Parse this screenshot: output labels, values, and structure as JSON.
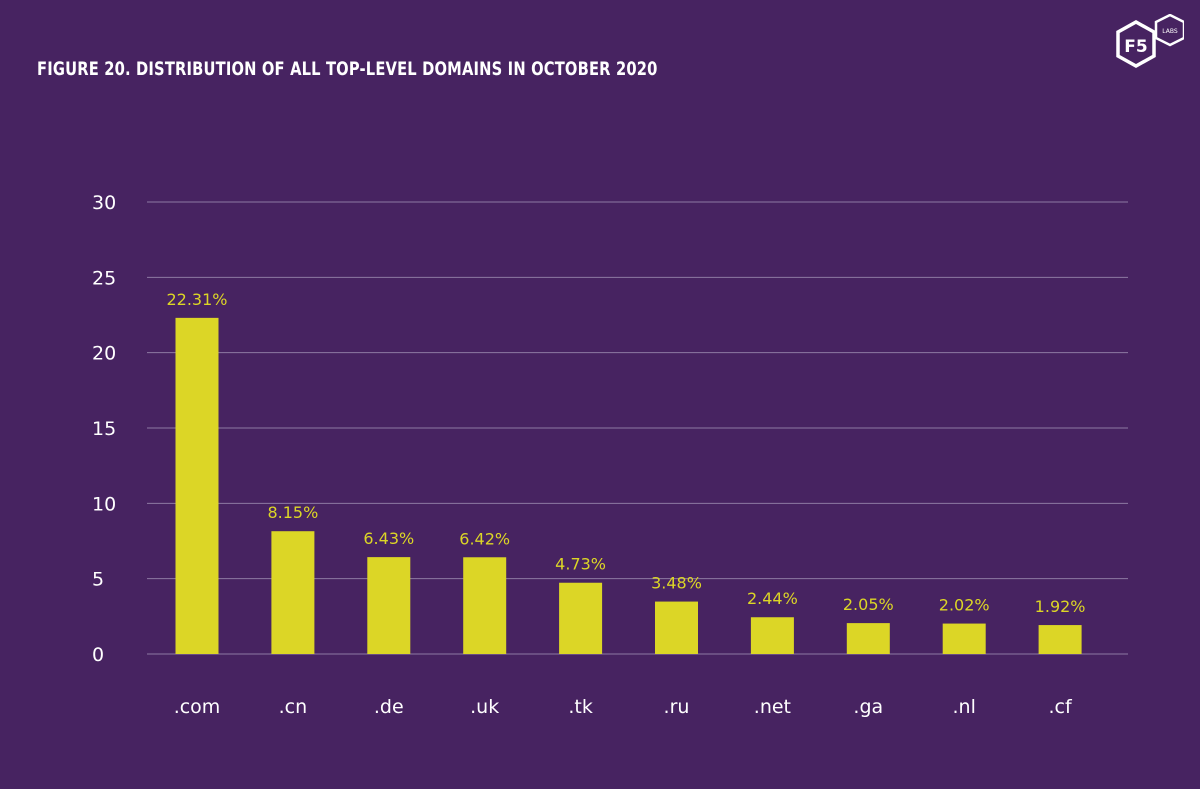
{
  "chart_data": {
    "type": "bar",
    "title": "FIGURE 20. DISTRIBUTION OF ALL TOP-LEVEL DOMAINS IN OCTOBER 2020",
    "categories": [
      ".com",
      ".cn",
      ".de",
      ".uk",
      ".tk",
      ".ru",
      ".net",
      ".ga",
      ".nl",
      ".cf"
    ],
    "values": [
      22.31,
      8.15,
      6.43,
      6.42,
      4.73,
      3.48,
      2.44,
      2.05,
      2.02,
      1.92
    ],
    "value_labels": [
      "22.31%",
      "8.15%",
      "6.43%",
      "6.42%",
      "4.73%",
      "3.48%",
      "2.44%",
      "2.05%",
      "2.02%",
      "1.92%"
    ],
    "yticks": [
      0,
      5,
      10,
      15,
      20,
      25,
      30
    ],
    "ylim": [
      0,
      30
    ],
    "xlabel": "",
    "ylabel": "",
    "grid": true,
    "colors": {
      "background": "#472361",
      "bar": "#dcd626",
      "text": "#ffffff",
      "grid": "#8d7aa2"
    }
  },
  "logo": {
    "text": "F5",
    "badge": "LABS"
  }
}
